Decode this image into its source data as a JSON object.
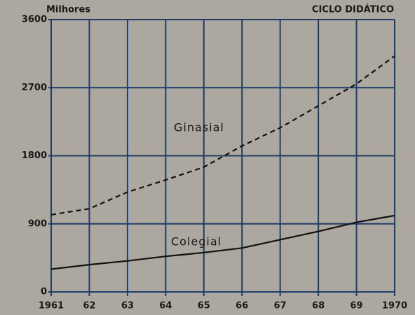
{
  "chart_data": {
    "type": "line",
    "y_label": "Milhores",
    "title": "CICLO DIDÁTICO",
    "x": [
      1961,
      1962,
      1963,
      1964,
      1965,
      1966,
      1967,
      1968,
      1969,
      1970
    ],
    "xlim": [
      1961,
      1970
    ],
    "xticks": [
      1961,
      {
        "value": 1962,
        "label": "62"
      },
      {
        "value": 1963,
        "label": "63"
      },
      {
        "value": 1964,
        "label": "64"
      },
      {
        "value": 1965,
        "label": "65"
      },
      {
        "value": 1966,
        "label": "66"
      },
      {
        "value": 1967,
        "label": "67"
      },
      {
        "value": 1968,
        "label": "68"
      },
      {
        "value": 1969,
        "label": "69"
      },
      1970
    ],
    "ylim": [
      0,
      3600
    ],
    "yticks": [
      0,
      900,
      1800,
      2700,
      3600
    ],
    "grid": true,
    "grid_color": "#1f3d69",
    "series": [
      {
        "name": "Ginasial",
        "color": "#111111",
        "dashed": true,
        "values": [
          1020,
          1100,
          1320,
          1480,
          1650,
          1930,
          2170,
          2460,
          2750,
          3120
        ]
      },
      {
        "name": "Colegial",
        "color": "#111111",
        "dashed": false,
        "values": [
          300,
          360,
          410,
          470,
          520,
          580,
          690,
          800,
          920,
          1010
        ]
      }
    ]
  }
}
